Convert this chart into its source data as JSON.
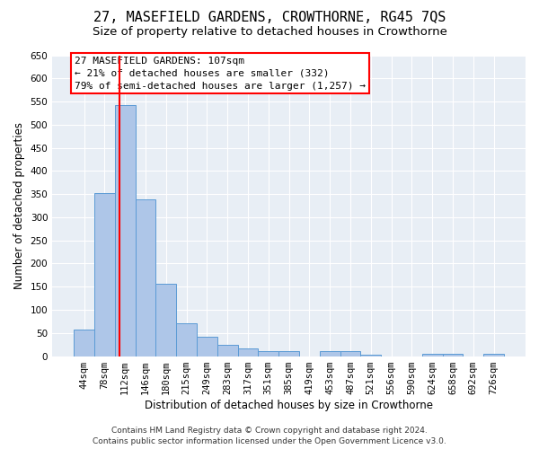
{
  "title": "27, MASEFIELD GARDENS, CROWTHORNE, RG45 7QS",
  "subtitle": "Size of property relative to detached houses in Crowthorne",
  "xlabel": "Distribution of detached houses by size in Crowthorne",
  "ylabel": "Number of detached properties",
  "footer_line1": "Contains HM Land Registry data © Crown copyright and database right 2024.",
  "footer_line2": "Contains public sector information licensed under the Open Government Licence v3.0.",
  "annotation_line1": "27 MASEFIELD GARDENS: 107sqm",
  "annotation_line2": "← 21% of detached houses are smaller (332)",
  "annotation_line3": "79% of semi-detached houses are larger (1,257) →",
  "bar_labels": [
    "44sqm",
    "78sqm",
    "112sqm",
    "146sqm",
    "180sqm",
    "215sqm",
    "249sqm",
    "283sqm",
    "317sqm",
    "351sqm",
    "385sqm",
    "419sqm",
    "453sqm",
    "487sqm",
    "521sqm",
    "556sqm",
    "590sqm",
    "624sqm",
    "658sqm",
    "692sqm",
    "726sqm"
  ],
  "bar_values": [
    57,
    353,
    543,
    338,
    157,
    70,
    42,
    25,
    17,
    10,
    10,
    0,
    10,
    10,
    3,
    0,
    0,
    5,
    5,
    0,
    5
  ],
  "bar_color": "#aec6e8",
  "bar_edge_color": "#5b9bd5",
  "red_line_x": 1.75,
  "ylim": [
    0,
    650
  ],
  "yticks": [
    0,
    50,
    100,
    150,
    200,
    250,
    300,
    350,
    400,
    450,
    500,
    550,
    600,
    650
  ],
  "background_color": "#ffffff",
  "plot_bg_color": "#e8eef5",
  "grid_color": "#ffffff",
  "title_fontsize": 11,
  "subtitle_fontsize": 9.5,
  "axis_label_fontsize": 8.5,
  "tick_fontsize": 7.5,
  "footer_fontsize": 6.5,
  "annotation_fontsize": 8
}
